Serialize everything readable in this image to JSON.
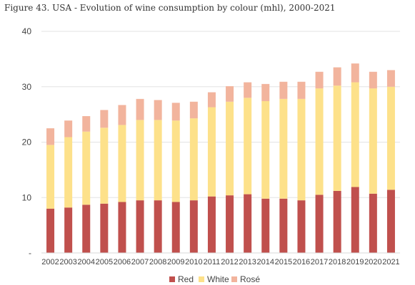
{
  "chart_data": {
    "type": "bar",
    "stacked": true,
    "title": "Figure 43. USA - Evolution of wine consumption by colour (mhl), 2000-2021",
    "xlabel": "",
    "ylabel": "",
    "ylim": [
      0,
      40
    ],
    "yticks": [
      "-",
      "10",
      "20",
      "30",
      "40"
    ],
    "grid": true,
    "legend_position": "bottom",
    "categories": [
      "2002",
      "2003",
      "2004",
      "2005",
      "2006",
      "2007",
      "2008",
      "2009",
      "2010",
      "2011",
      "2012",
      "2013",
      "2014",
      "2015",
      "2016",
      "2017",
      "2018",
      "2019",
      "2020",
      "2021"
    ],
    "series": [
      {
        "name": "Red",
        "color": "#c0504d",
        "values": [
          8.0,
          8.2,
          8.7,
          8.9,
          9.2,
          9.5,
          9.5,
          9.2,
          9.5,
          10.2,
          10.4,
          10.6,
          9.8,
          9.8,
          9.5,
          10.5,
          11.2,
          11.9,
          10.7,
          11.4
        ]
      },
      {
        "name": "White",
        "color": "#fde18a",
        "values": [
          11.5,
          12.7,
          13.2,
          13.7,
          13.9,
          14.5,
          14.5,
          14.7,
          14.8,
          16.1,
          16.9,
          17.4,
          17.6,
          18.0,
          18.3,
          19.2,
          19.0,
          18.9,
          19.0,
          18.6
        ]
      },
      {
        "name": "Rosé",
        "color": "#f2b49d",
        "values": [
          3.0,
          3.0,
          2.8,
          3.2,
          3.6,
          3.8,
          3.6,
          3.2,
          3.0,
          2.7,
          2.8,
          2.8,
          3.1,
          3.1,
          3.1,
          3.0,
          3.3,
          3.4,
          3.0,
          3.0
        ]
      }
    ]
  }
}
